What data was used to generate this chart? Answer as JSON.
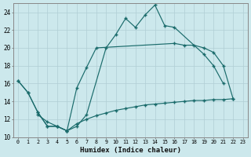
{
  "xlabel": "Humidex (Indice chaleur)",
  "bg_color": "#cce8ec",
  "grid_color": "#b0ced4",
  "line_color": "#1a6b6b",
  "xlim": [
    -0.5,
    23.5
  ],
  "ylim": [
    10,
    25
  ],
  "xticks": [
    0,
    1,
    2,
    3,
    4,
    5,
    6,
    7,
    8,
    9,
    10,
    11,
    12,
    13,
    14,
    15,
    16,
    17,
    18,
    19,
    20,
    21,
    22,
    23
  ],
  "yticks": [
    10,
    12,
    14,
    16,
    18,
    20,
    22,
    24
  ],
  "series1_x": [
    0,
    1,
    2,
    3,
    4,
    5,
    6,
    7,
    9,
    10,
    11,
    12,
    13,
    14,
    15,
    16,
    19,
    20,
    21
  ],
  "series1_y": [
    16.3,
    15.0,
    12.8,
    11.2,
    11.2,
    10.7,
    11.2,
    12.5,
    20.0,
    21.5,
    23.3,
    22.3,
    23.7,
    24.8,
    22.5,
    22.3,
    19.3,
    18.0,
    16.0
  ],
  "series2_x": [
    0,
    1,
    2,
    3,
    4,
    5,
    6,
    7,
    8,
    16,
    17,
    18,
    19,
    20,
    21,
    22
  ],
  "series2_y": [
    16.3,
    15.0,
    12.8,
    11.2,
    11.2,
    10.7,
    15.5,
    17.8,
    20.0,
    20.5,
    20.3,
    20.3,
    20.0,
    19.5,
    18.0,
    14.3
  ],
  "series3_x": [
    2,
    3,
    4,
    5,
    6,
    7,
    8,
    9,
    10,
    11,
    12,
    13,
    14,
    15,
    16,
    17,
    18,
    19,
    20,
    21,
    22
  ],
  "series3_y": [
    12.5,
    11.7,
    11.2,
    10.7,
    11.5,
    12.0,
    12.4,
    12.7,
    13.0,
    13.2,
    13.4,
    13.6,
    13.7,
    13.8,
    13.9,
    14.0,
    14.1,
    14.1,
    14.2,
    14.2,
    14.3
  ]
}
